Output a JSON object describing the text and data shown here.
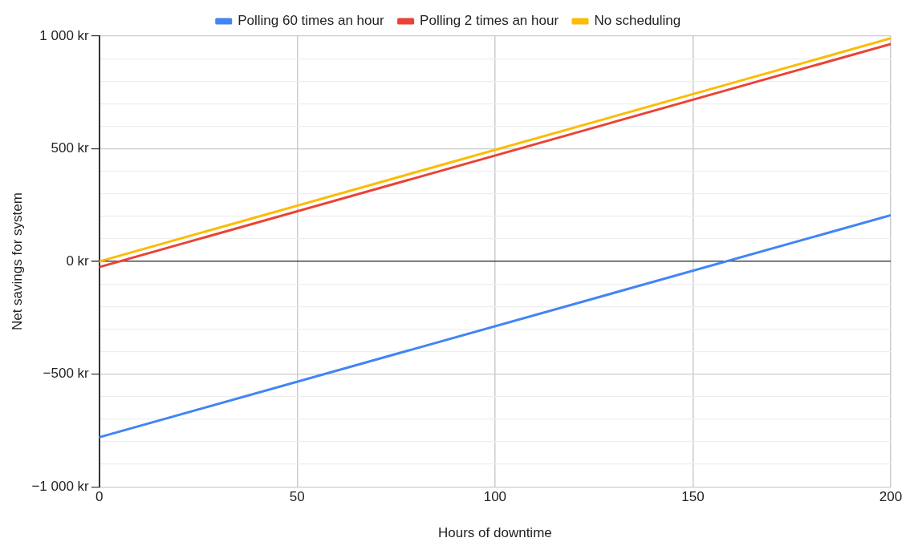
{
  "chart_data": {
    "type": "line",
    "xlabel": "Hours of downtime",
    "ylabel": "Net savings for system",
    "x": [
      0,
      200
    ],
    "series": [
      {
        "name": "Polling 60 times an hour",
        "color": "#4285f4",
        "values": [
          -780,
          205
        ]
      },
      {
        "name": "Polling 2 times an hour",
        "color": "#ea4335",
        "values": [
          -25,
          965
        ]
      },
      {
        "name": "No scheduling",
        "color": "#fbbc04",
        "values": [
          0,
          990
        ]
      }
    ],
    "xlim": [
      0,
      200
    ],
    "xticks": [
      0,
      50,
      100,
      150,
      200
    ],
    "ylim": [
      -1000,
      1000
    ],
    "yticks": [
      {
        "value": -1000,
        "label": "−1 000 kr"
      },
      {
        "value": -900,
        "label": null
      },
      {
        "value": -800,
        "label": null
      },
      {
        "value": -700,
        "label": null
      },
      {
        "value": -600,
        "label": null
      },
      {
        "value": -500,
        "label": "−500 kr"
      },
      {
        "value": -400,
        "label": null
      },
      {
        "value": -300,
        "label": null
      },
      {
        "value": -200,
        "label": null
      },
      {
        "value": -100,
        "label": null
      },
      {
        "value": 0,
        "label": "0 kr"
      },
      {
        "value": 100,
        "label": null
      },
      {
        "value": 200,
        "label": null
      },
      {
        "value": 300,
        "label": null
      },
      {
        "value": 400,
        "label": null
      },
      {
        "value": 500,
        "label": "500 kr"
      },
      {
        "value": 600,
        "label": null
      },
      {
        "value": 700,
        "label": null
      },
      {
        "value": 800,
        "label": null
      },
      {
        "value": 900,
        "label": null
      },
      {
        "value": 1000,
        "label": "1 000 kr"
      }
    ],
    "grid": true,
    "legend": "top",
    "marker": "none",
    "line_style": "solid"
  }
}
